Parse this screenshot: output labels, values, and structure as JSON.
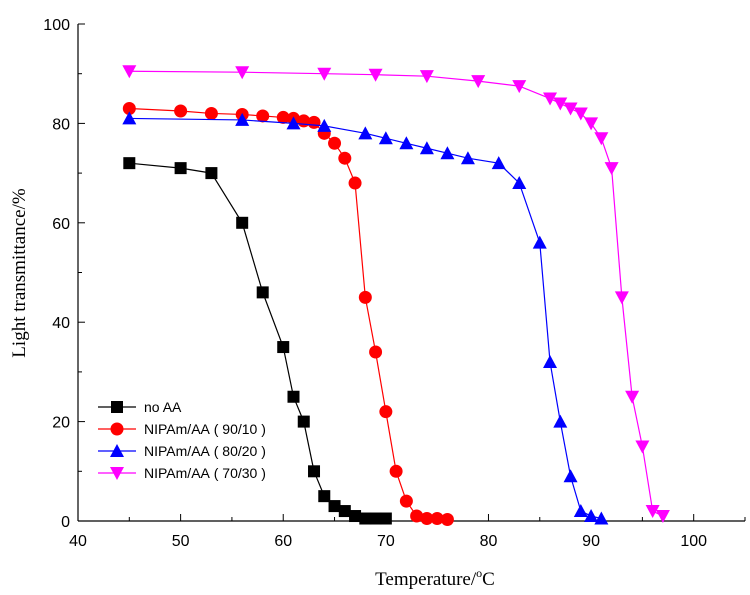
{
  "chart_data": {
    "type": "line",
    "title": "",
    "xlabel": "Temperature/",
    "xlabel_unit_sup": "o",
    "xlabel_unit": "C",
    "ylabel": "Light transmittance/%",
    "xlim": [
      40,
      105
    ],
    "ylim": [
      0,
      100
    ],
    "xticks": [
      40,
      50,
      60,
      70,
      80,
      90,
      100
    ],
    "yticks": [
      0,
      20,
      40,
      60,
      80,
      100
    ],
    "grid": false,
    "legend_position": "bottom-left",
    "series": [
      {
        "name": "no AA",
        "color": "#000000",
        "marker": "square",
        "x": [
          45,
          50,
          53,
          56,
          58,
          60,
          61,
          62,
          63,
          64,
          65,
          66,
          67,
          68,
          69,
          70
        ],
        "y": [
          72,
          71,
          70,
          60,
          46,
          35,
          25,
          20,
          10,
          5,
          3,
          2,
          1,
          0.5,
          0.5,
          0.5
        ]
      },
      {
        "name": "NIPAm/AA ( 90/10 )",
        "color": "#ff0000",
        "marker": "circle",
        "x": [
          45,
          50,
          53,
          56,
          58,
          60,
          61,
          62,
          63,
          64,
          65,
          66,
          67,
          68,
          69,
          70,
          71,
          72,
          73,
          74,
          75,
          76
        ],
        "y": [
          83,
          82.5,
          82,
          81.8,
          81.5,
          81.2,
          81,
          80.5,
          80.2,
          78,
          76,
          73,
          68,
          45,
          34,
          22,
          10,
          4,
          1,
          0.5,
          0.5,
          0.3
        ]
      },
      {
        "name": "NIPAm/AA ( 80/20 )",
        "color": "#0000ff",
        "marker": "triangle-up",
        "x": [
          45,
          56,
          61,
          64,
          68,
          70,
          72,
          74,
          76,
          78,
          81,
          83,
          85,
          86,
          87,
          88,
          89,
          90,
          91
        ],
        "y": [
          81,
          80.7,
          80,
          79.5,
          78,
          77,
          76,
          75,
          74,
          73,
          72,
          68,
          56,
          32,
          20,
          9,
          2,
          1,
          0.5
        ]
      },
      {
        "name": "NIPAm/AA ( 70/30 )",
        "color": "#ff00ff",
        "marker": "triangle-down",
        "x": [
          45,
          56,
          64,
          69,
          74,
          79,
          83,
          86,
          87,
          88,
          89,
          90,
          91,
          92,
          93,
          94,
          95,
          96,
          97
        ],
        "y": [
          90.5,
          90.3,
          90,
          89.8,
          89.5,
          88.5,
          87.5,
          85,
          84,
          83,
          82,
          80,
          77,
          71,
          45,
          25,
          15,
          2,
          1
        ]
      }
    ]
  }
}
